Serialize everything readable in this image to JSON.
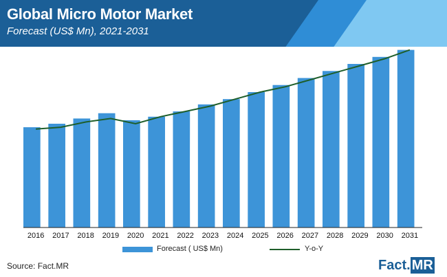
{
  "header": {
    "title": "Global Micro Motor Market",
    "subtitle": "Forecast (US$ Mn), 2021-2031"
  },
  "chart_data": {
    "type": "bar",
    "title": "Global Micro Motor Market",
    "subtitle": "Forecast (US$ Mn), 2021-2031",
    "categories": [
      "2016",
      "2017",
      "2018",
      "2019",
      "2020",
      "2021",
      "2022",
      "2023",
      "2024",
      "2025",
      "2026",
      "2027",
      "2028",
      "2029",
      "2030",
      "2031"
    ],
    "series": [
      {
        "name": "Forecast ( US$ Mn)",
        "type": "bar",
        "values": [
          57,
          59,
          62,
          65,
          61,
          63,
          66,
          70,
          73,
          77,
          81,
          85,
          89,
          93,
          97,
          101
        ]
      },
      {
        "name": "Y-o-Y",
        "type": "line",
        "values": [
          56,
          57,
          60,
          62,
          59,
          63,
          66,
          69,
          73,
          77,
          80,
          84,
          88,
          92,
          96,
          101
        ]
      }
    ],
    "ylim": [
      0,
      102
    ],
    "grid": false,
    "legend": "bottom",
    "colors": {
      "bar": "#3d94d8",
      "bar_highlight": "#ffffff",
      "line": "#1e5e2a",
      "axis": "#222222"
    }
  },
  "legend": {
    "bar_label": "Forecast ( US$ Mn)",
    "line_label": "Y-o-Y"
  },
  "footer": {
    "source": "Source: Fact.MR",
    "logo_part1": "Fact.",
    "logo_part2": "MR"
  }
}
